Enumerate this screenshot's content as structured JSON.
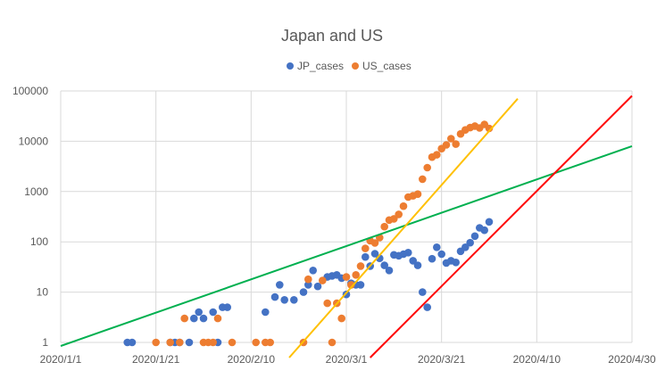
{
  "chart_data": {
    "type": "scatter",
    "title": "Japan and US",
    "legend_position": "top",
    "grid": true,
    "y_scale": "log",
    "ylim": [
      1,
      100000
    ],
    "xlim": [
      "2020/1/1",
      "2020/4/30"
    ],
    "x_tick_labels": [
      "2020/1/1",
      "2020/1/21",
      "2020/2/10",
      "2020/3/1",
      "2020/3/21",
      "2020/4/10",
      "2020/4/30"
    ],
    "y_tick_labels": [
      "1",
      "10",
      "100",
      "1000",
      "10000",
      "100000"
    ],
    "y_ticks": [
      1,
      10,
      100,
      1000,
      10000,
      100000
    ],
    "series": [
      {
        "name": "JP_cases",
        "color": "#4472c4",
        "points": [
          [
            "2020/1/15",
            1
          ],
          [
            "2020/1/16",
            1
          ],
          [
            "2020/1/24",
            1
          ],
          [
            "2020/1/25",
            1
          ],
          [
            "2020/1/26",
            1
          ],
          [
            "2020/1/28",
            1
          ],
          [
            "2020/1/29",
            3
          ],
          [
            "2020/1/30",
            4
          ],
          [
            "2020/1/31",
            3
          ],
          [
            "2020/2/2",
            4
          ],
          [
            "2020/2/3",
            1
          ],
          [
            "2020/2/4",
            5
          ],
          [
            "2020/2/5",
            5
          ],
          [
            "2020/2/13",
            4
          ],
          [
            "2020/2/15",
            8
          ],
          [
            "2020/2/16",
            14
          ],
          [
            "2020/2/17",
            7
          ],
          [
            "2020/2/19",
            7
          ],
          [
            "2020/2/21",
            10
          ],
          [
            "2020/2/22",
            14
          ],
          [
            "2020/2/23",
            27
          ],
          [
            "2020/2/24",
            13
          ],
          [
            "2020/2/26",
            20
          ],
          [
            "2020/2/27",
            21
          ],
          [
            "2020/2/28",
            22
          ],
          [
            "2020/2/29",
            19
          ],
          [
            "2020/3/1",
            9
          ],
          [
            "2020/3/2",
            15
          ],
          [
            "2020/3/3",
            14
          ],
          [
            "2020/3/4",
            14
          ],
          [
            "2020/3/5",
            50
          ],
          [
            "2020/3/6",
            33
          ],
          [
            "2020/3/7",
            58
          ],
          [
            "2020/3/8",
            47
          ],
          [
            "2020/3/9",
            34
          ],
          [
            "2020/3/10",
            27
          ],
          [
            "2020/3/11",
            55
          ],
          [
            "2020/3/12",
            53
          ],
          [
            "2020/3/13",
            57
          ],
          [
            "2020/3/14",
            61
          ],
          [
            "2020/3/15",
            42
          ],
          [
            "2020/3/16",
            34
          ],
          [
            "2020/3/17",
            10
          ],
          [
            "2020/3/18",
            5
          ],
          [
            "2020/3/19",
            46
          ],
          [
            "2020/3/20",
            78
          ],
          [
            "2020/3/21",
            57
          ],
          [
            "2020/3/22",
            38
          ],
          [
            "2020/3/23",
            42
          ],
          [
            "2020/3/24",
            39
          ],
          [
            "2020/3/25",
            65
          ],
          [
            "2020/3/26",
            78
          ],
          [
            "2020/3/27",
            96
          ],
          [
            "2020/3/28",
            130
          ],
          [
            "2020/3/29",
            190
          ],
          [
            "2020/3/30",
            170
          ],
          [
            "2020/3/31",
            250
          ]
        ]
      },
      {
        "name": "US_cases",
        "color": "#ed7d31",
        "points": [
          [
            "2020/1/21",
            1
          ],
          [
            "2020/1/24",
            1
          ],
          [
            "2020/1/26",
            1
          ],
          [
            "2020/1/27",
            3
          ],
          [
            "2020/1/31",
            1
          ],
          [
            "2020/2/1",
            1
          ],
          [
            "2020/2/2",
            1
          ],
          [
            "2020/2/3",
            3
          ],
          [
            "2020/2/6",
            1
          ],
          [
            "2020/2/11",
            1
          ],
          [
            "2020/2/13",
            1
          ],
          [
            "2020/2/14",
            1
          ],
          [
            "2020/2/21",
            1
          ],
          [
            "2020/2/22",
            18
          ],
          [
            "2020/2/25",
            17
          ],
          [
            "2020/2/26",
            6
          ],
          [
            "2020/2/27",
            1
          ],
          [
            "2020/2/28",
            6
          ],
          [
            "2020/2/29",
            3
          ],
          [
            "2020/3/1",
            20
          ],
          [
            "2020/3/2",
            14
          ],
          [
            "2020/3/3",
            22
          ],
          [
            "2020/3/4",
            33
          ],
          [
            "2020/3/5",
            74
          ],
          [
            "2020/3/6",
            105
          ],
          [
            "2020/3/7",
            95
          ],
          [
            "2020/3/8",
            121
          ],
          [
            "2020/3/9",
            200
          ],
          [
            "2020/3/10",
            271
          ],
          [
            "2020/3/11",
            287
          ],
          [
            "2020/3/12",
            351
          ],
          [
            "2020/3/13",
            511
          ],
          [
            "2020/3/14",
            777
          ],
          [
            "2020/3/15",
            823
          ],
          [
            "2020/3/16",
            887
          ],
          [
            "2020/3/17",
            1766
          ],
          [
            "2020/3/18",
            2988
          ],
          [
            "2020/3/19",
            4835
          ],
          [
            "2020/3/20",
            5374
          ],
          [
            "2020/3/21",
            7123
          ],
          [
            "2020/3/22",
            8459
          ],
          [
            "2020/3/23",
            11236
          ],
          [
            "2020/3/24",
            8789
          ],
          [
            "2020/3/25",
            13963
          ],
          [
            "2020/3/26",
            16797
          ],
          [
            "2020/3/27",
            18695
          ],
          [
            "2020/3/28",
            19979
          ],
          [
            "2020/3/29",
            18360
          ],
          [
            "2020/3/30",
            21595
          ],
          [
            "2020/3/31",
            18000
          ]
        ]
      }
    ],
    "trendlines": [
      {
        "color": "#00b050",
        "from": [
          "2020/1/1",
          0.85
        ],
        "to": [
          "2020/4/30",
          8000
        ]
      },
      {
        "color": "#ffc000",
        "from": [
          "2020/2/18",
          0.5
        ],
        "to": [
          "2020/4/6",
          70000
        ]
      },
      {
        "color": "#ff0000",
        "from": [
          "2020/3/6",
          0.5
        ],
        "to": [
          "2020/4/30",
          80000
        ]
      }
    ]
  }
}
